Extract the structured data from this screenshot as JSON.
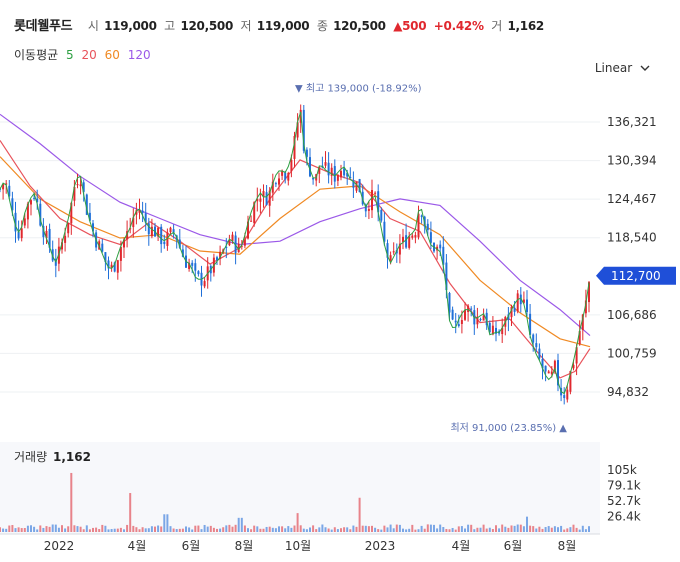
{
  "header": {
    "name": "롯데웰푸드",
    "open_label": "시",
    "open": "119,000",
    "high_label": "고",
    "high": "120,500",
    "low_label": "저",
    "low": "119,000",
    "close_label": "종",
    "close": "120,500",
    "change": "▲500",
    "change_pct": "+0.42%",
    "volume_label": "거",
    "volume": "1,162"
  },
  "ma_legend": {
    "title": "이동평균",
    "items": [
      {
        "label": "5",
        "color": "#2ea043"
      },
      {
        "label": "20",
        "color": "#e8535b"
      },
      {
        "label": "60",
        "color": "#f08a24"
      },
      {
        "label": "120",
        "color": "#9b59e8"
      }
    ]
  },
  "scale_button": "Linear",
  "chart_data": {
    "type": "candlestick",
    "y_ticks": [
      136321,
      130394,
      124467,
      118540,
      106686,
      100759,
      94832
    ],
    "y_tick_labels": [
      "136,321",
      "130,394",
      "124,467",
      "118,540",
      "106,686",
      "100,759",
      "94,832"
    ],
    "ylim": [
      90000,
      142000
    ],
    "last_price": 112700,
    "last_price_label": "112,700",
    "high_marker": {
      "label": "▼ 최고 139,000 (-18.92%)",
      "value": 139000
    },
    "low_marker": {
      "label": "최저 91,000 (23.85%) ▲",
      "value": 91000
    },
    "x_tick_labels": [
      "2022",
      "4월",
      "6월",
      "8월",
      "10월",
      "2023",
      "4월",
      "6월",
      "8월"
    ],
    "price_path": [
      [
        0,
        126000
      ],
      [
        5,
        127500
      ],
      [
        10,
        124000
      ],
      [
        15,
        120500
      ],
      [
        20,
        119000
      ],
      [
        25,
        122500
      ],
      [
        30,
        124500
      ],
      [
        35,
        125500
      ],
      [
        40,
        121500
      ],
      [
        45,
        119000
      ],
      [
        50,
        117000
      ],
      [
        55,
        114500
      ],
      [
        60,
        116500
      ],
      [
        65,
        119500
      ],
      [
        70,
        122500
      ],
      [
        75,
        127000
      ],
      [
        80,
        128500
      ],
      [
        85,
        124000
      ],
      [
        90,
        121000
      ],
      [
        95,
        118500
      ],
      [
        100,
        117000
      ],
      [
        105,
        115000
      ],
      [
        110,
        113500
      ],
      [
        115,
        114500
      ],
      [
        120,
        117000
      ],
      [
        125,
        118500
      ],
      [
        130,
        120000
      ],
      [
        135,
        122500
      ],
      [
        140,
        123000
      ],
      [
        145,
        121000
      ],
      [
        150,
        120000
      ],
      [
        155,
        119500
      ],
      [
        160,
        118500
      ],
      [
        165,
        118000
      ],
      [
        170,
        119000
      ],
      [
        175,
        119500
      ],
      [
        180,
        117000
      ],
      [
        185,
        115000
      ],
      [
        190,
        114500
      ],
      [
        195,
        112500
      ],
      [
        200,
        112000
      ],
      [
        205,
        112500
      ],
      [
        210,
        113500
      ],
      [
        215,
        114500
      ],
      [
        220,
        115500
      ],
      [
        225,
        117000
      ],
      [
        230,
        118500
      ],
      [
        235,
        117500
      ],
      [
        240,
        116500
      ],
      [
        245,
        119000
      ],
      [
        250,
        122000
      ],
      [
        255,
        124000
      ],
      [
        260,
        125500
      ],
      [
        265,
        124500
      ],
      [
        270,
        125500
      ],
      [
        275,
        128000
      ],
      [
        280,
        129000
      ],
      [
        285,
        128500
      ],
      [
        290,
        130000
      ],
      [
        295,
        133500
      ],
      [
        300,
        139000
      ],
      [
        305,
        131000
      ],
      [
        310,
        129000
      ],
      [
        315,
        127000
      ],
      [
        320,
        130000
      ],
      [
        325,
        129000
      ],
      [
        330,
        128500
      ],
      [
        335,
        128000
      ],
      [
        340,
        129000
      ],
      [
        345,
        129500
      ],
      [
        350,
        127500
      ],
      [
        355,
        127000
      ],
      [
        360,
        126000
      ],
      [
        365,
        123000
      ],
      [
        370,
        124500
      ],
      [
        375,
        125000
      ],
      [
        380,
        121000
      ],
      [
        385,
        117000
      ],
      [
        390,
        114500
      ],
      [
        395,
        116000
      ],
      [
        400,
        117500
      ],
      [
        405,
        118000
      ],
      [
        410,
        119000
      ],
      [
        415,
        119500
      ],
      [
        420,
        124000
      ],
      [
        425,
        120500
      ],
      [
        430,
        117500
      ],
      [
        435,
        117000
      ],
      [
        440,
        116500
      ],
      [
        445,
        113000
      ],
      [
        450,
        105000
      ],
      [
        455,
        104500
      ],
      [
        460,
        106500
      ],
      [
        465,
        107500
      ],
      [
        470,
        107500
      ],
      [
        475,
        106000
      ],
      [
        480,
        106500
      ],
      [
        485,
        107000
      ],
      [
        490,
        103500
      ],
      [
        495,
        104000
      ],
      [
        500,
        104000
      ],
      [
        505,
        105500
      ],
      [
        510,
        107000
      ],
      [
        515,
        108500
      ],
      [
        520,
        109500
      ],
      [
        525,
        108000
      ],
      [
        530,
        103500
      ],
      [
        535,
        101000
      ],
      [
        540,
        99500
      ],
      [
        545,
        97500
      ],
      [
        550,
        96500
      ],
      [
        555,
        98500
      ],
      [
        560,
        95000
      ],
      [
        565,
        94500
      ],
      [
        570,
        97500
      ],
      [
        575,
        100500
      ],
      [
        580,
        104500
      ],
      [
        585,
        107500
      ],
      [
        590,
        112700
      ]
    ],
    "ma20_path": [
      [
        0,
        133500
      ],
      [
        30,
        126500
      ],
      [
        60,
        121500
      ],
      [
        90,
        119000
      ],
      [
        120,
        117500
      ],
      [
        150,
        121000
      ],
      [
        180,
        118000
      ],
      [
        210,
        114500
      ],
      [
        240,
        117000
      ],
      [
        270,
        124500
      ],
      [
        300,
        130500
      ],
      [
        330,
        128500
      ],
      [
        360,
        127000
      ],
      [
        390,
        121500
      ],
      [
        420,
        119500
      ],
      [
        450,
        111500
      ],
      [
        480,
        105500
      ],
      [
        510,
        106000
      ],
      [
        540,
        100500
      ],
      [
        560,
        97000
      ],
      [
        575,
        98000
      ],
      [
        590,
        101500
      ]
    ],
    "ma60_path": [
      [
        0,
        131000
      ],
      [
        40,
        124500
      ],
      [
        80,
        121000
      ],
      [
        120,
        118500
      ],
      [
        160,
        119000
      ],
      [
        200,
        116500
      ],
      [
        240,
        116000
      ],
      [
        280,
        121500
      ],
      [
        320,
        126000
      ],
      [
        360,
        126500
      ],
      [
        400,
        122500
      ],
      [
        440,
        119000
      ],
      [
        480,
        112000
      ],
      [
        520,
        107000
      ],
      [
        560,
        103000
      ],
      [
        590,
        101800
      ]
    ],
    "ma120_path": [
      [
        0,
        137500
      ],
      [
        40,
        133000
      ],
      [
        80,
        128000
      ],
      [
        120,
        124000
      ],
      [
        160,
        121500
      ],
      [
        200,
        119000
      ],
      [
        240,
        117500
      ],
      [
        280,
        118000
      ],
      [
        320,
        121000
      ],
      [
        360,
        123000
      ],
      [
        400,
        124500
      ],
      [
        440,
        123500
      ],
      [
        480,
        118000
      ],
      [
        520,
        112000
      ],
      [
        560,
        107500
      ],
      [
        590,
        103500
      ]
    ],
    "volume_ticks": [
      "105k",
      "79.1k",
      "52.7k",
      "26.4k"
    ],
    "volume_max": 105000,
    "volume_title": "거래량",
    "volume_value": "1,162"
  }
}
